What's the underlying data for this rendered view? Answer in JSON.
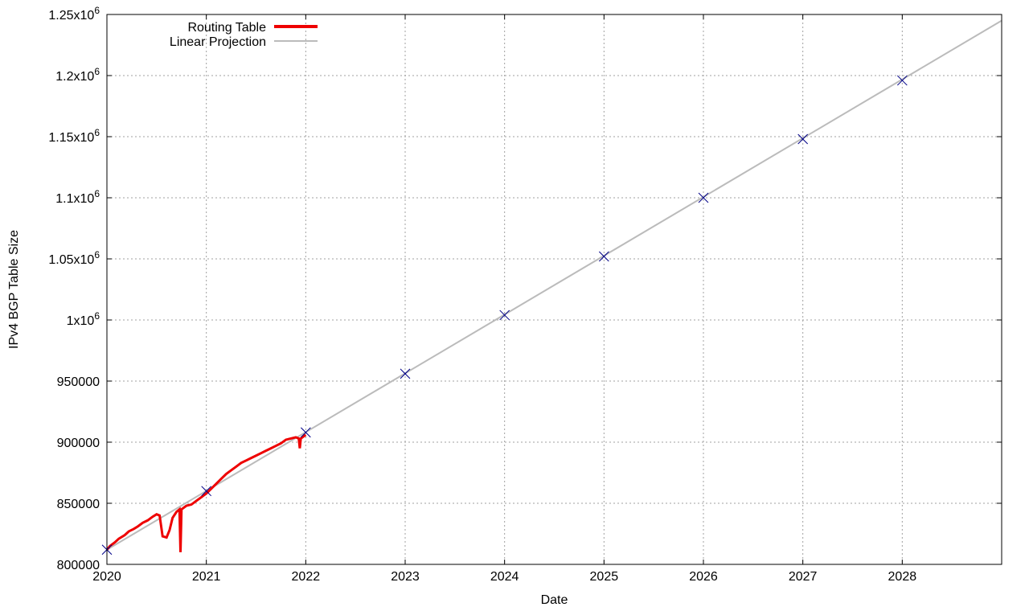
{
  "chart_data": {
    "type": "line",
    "xlabel": "Date",
    "ylabel": "IPv4 BGP Table Size",
    "xlim": [
      2020,
      2029
    ],
    "ylim": [
      800000,
      1250000
    ],
    "grid": true,
    "legend_position": "top-left",
    "x_ticks": [
      {
        "value": 2020,
        "label": "2020"
      },
      {
        "value": 2021,
        "label": "2021"
      },
      {
        "value": 2022,
        "label": "2022"
      },
      {
        "value": 2023,
        "label": "2023"
      },
      {
        "value": 2024,
        "label": "2024"
      },
      {
        "value": 2025,
        "label": "2025"
      },
      {
        "value": 2026,
        "label": "2026"
      },
      {
        "value": 2027,
        "label": "2027"
      },
      {
        "value": 2028,
        "label": "2028"
      }
    ],
    "y_ticks": [
      {
        "value": 800000,
        "label": "800000"
      },
      {
        "value": 850000,
        "label": "850000"
      },
      {
        "value": 900000,
        "label": "900000"
      },
      {
        "value": 950000,
        "label": "950000"
      },
      {
        "value": 1000000,
        "label": "1x10",
        "exp": "6"
      },
      {
        "value": 1050000,
        "label": "1.05x10",
        "exp": "6"
      },
      {
        "value": 1100000,
        "label": "1.1x10",
        "exp": "6"
      },
      {
        "value": 1150000,
        "label": "1.15x10",
        "exp": "6"
      },
      {
        "value": 1200000,
        "label": "1.2x10",
        "exp": "6"
      },
      {
        "value": 1250000,
        "label": "1.25x10",
        "exp": "6"
      }
    ],
    "series": [
      {
        "name": "Routing Table",
        "color": "#ee0000",
        "points": [
          [
            2020.0,
            812000
          ],
          [
            2020.03,
            815000
          ],
          [
            2020.08,
            818000
          ],
          [
            2020.12,
            821000
          ],
          [
            2020.18,
            824000
          ],
          [
            2020.22,
            827000
          ],
          [
            2020.27,
            829000
          ],
          [
            2020.31,
            831000
          ],
          [
            2020.36,
            834000
          ],
          [
            2020.41,
            836000
          ],
          [
            2020.46,
            839000
          ],
          [
            2020.5,
            841000
          ],
          [
            2020.53,
            840000
          ],
          [
            2020.56,
            823000
          ],
          [
            2020.6,
            822000
          ],
          [
            2020.63,
            828000
          ],
          [
            2020.66,
            838000
          ],
          [
            2020.7,
            843000
          ],
          [
            2020.73,
            845000
          ],
          [
            2020.74,
            810000
          ],
          [
            2020.75,
            845000
          ],
          [
            2020.8,
            848000
          ],
          [
            2020.85,
            849000
          ],
          [
            2020.9,
            852000
          ],
          [
            2020.95,
            855000
          ],
          [
            2021.0,
            858000
          ],
          [
            2021.05,
            862000
          ],
          [
            2021.1,
            866000
          ],
          [
            2021.15,
            870000
          ],
          [
            2021.2,
            874000
          ],
          [
            2021.25,
            877000
          ],
          [
            2021.3,
            880000
          ],
          [
            2021.35,
            883000
          ],
          [
            2021.4,
            885000
          ],
          [
            2021.45,
            887000
          ],
          [
            2021.5,
            889000
          ],
          [
            2021.55,
            891000
          ],
          [
            2021.6,
            893000
          ],
          [
            2021.65,
            895000
          ],
          [
            2021.7,
            897000
          ],
          [
            2021.75,
            899000
          ],
          [
            2021.8,
            902000
          ],
          [
            2021.85,
            903000
          ],
          [
            2021.9,
            904000
          ],
          [
            2021.93,
            903000
          ],
          [
            2021.94,
            895000
          ],
          [
            2021.95,
            903000
          ],
          [
            2022.0,
            906000
          ]
        ]
      },
      {
        "name": "Linear Projection",
        "color": "#bbbbbb",
        "points": [
          [
            2020.0,
            812000
          ],
          [
            2029.0,
            1245000
          ]
        ]
      }
    ],
    "annual_markers": {
      "color": "#000088",
      "points": [
        [
          2020,
          812000
        ],
        [
          2021,
          860000
        ],
        [
          2022,
          908000
        ],
        [
          2023,
          956000
        ],
        [
          2024,
          1004000
        ],
        [
          2025,
          1052000
        ],
        [
          2026,
          1100000
        ],
        [
          2027,
          1148000
        ],
        [
          2028,
          1196000
        ]
      ]
    }
  }
}
